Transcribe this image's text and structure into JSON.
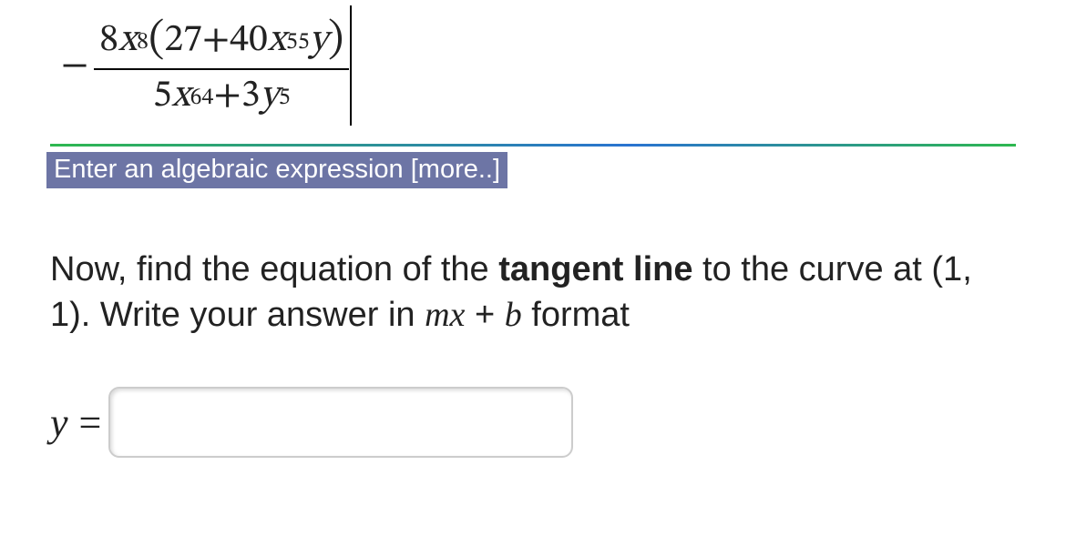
{
  "fraction": {
    "leading_sign": "−",
    "numerator": {
      "coef": "8",
      "x": "x",
      "x_exp": "8",
      "open": "(",
      "term1": "27",
      "plus": " + ",
      "term2_coef": "40",
      "term2_x": "x",
      "term2_x_exp": "55",
      "term2_y": "y",
      "close": ")"
    },
    "denominator": {
      "t1_coef": "5",
      "t1_x": "x",
      "t1_x_exp": "64",
      "plus": " + ",
      "t2_coef": "3",
      "t2_y": "y",
      "t2_y_exp": "5"
    }
  },
  "banner_text": "Enter an algebraic expression [more..]",
  "prompt": {
    "p1": "Now, find the equation of the ",
    "bold": "tangent line",
    "p2": " to the curve at (1, 1). Write your answer in ",
    "mx": "mx",
    "plus": " + ",
    "b": "b",
    "p3": " format"
  },
  "answer": {
    "lhs": "y",
    "eq": "=",
    "value": ""
  },
  "colors": {
    "banner_bg": "#6d75a5",
    "banner_fg": "#ffffff",
    "rule_green": "#2eb84f",
    "rule_blue": "#2a73d1"
  }
}
